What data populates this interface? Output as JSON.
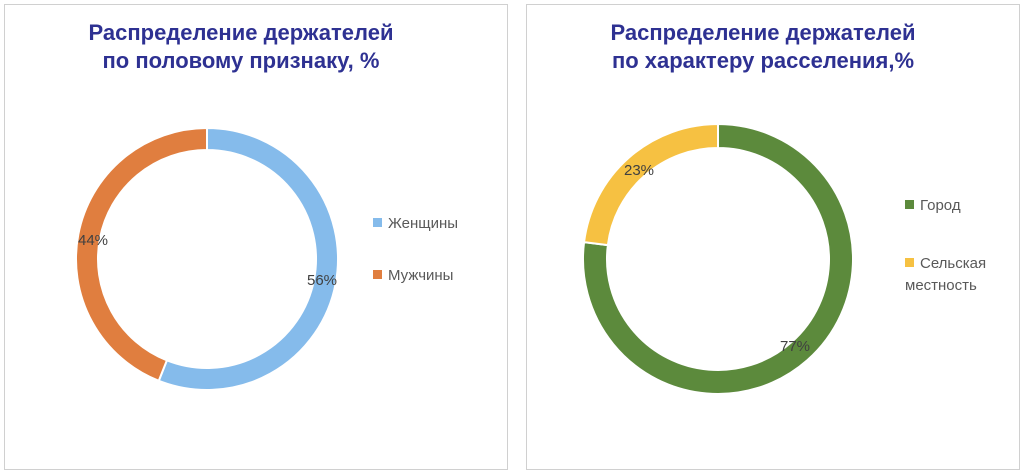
{
  "chart_data": [
    {
      "type": "pie",
      "variant": "donut",
      "title_lines": [
        "Распределение держателей",
        "по половому признаку, %"
      ],
      "categories": [
        "Женщины",
        "Мужчины"
      ],
      "values": [
        56,
        44
      ],
      "labels": [
        "56%",
        "44%"
      ],
      "colors": [
        "#85bbeb",
        "#e07e3f"
      ],
      "legend_position": "right"
    },
    {
      "type": "pie",
      "variant": "donut",
      "title_lines": [
        "Распределение держателей",
        "по характеру расселения,%"
      ],
      "categories": [
        "Город",
        "Сельская местность"
      ],
      "legend_lines": [
        [
          "Город"
        ],
        [
          "Сельская",
          "местность"
        ]
      ],
      "values": [
        77,
        23
      ],
      "labels": [
        "77%",
        "23%"
      ],
      "colors": [
        "#5c8a3c",
        "#f6c142"
      ],
      "legend_position": "right"
    }
  ]
}
